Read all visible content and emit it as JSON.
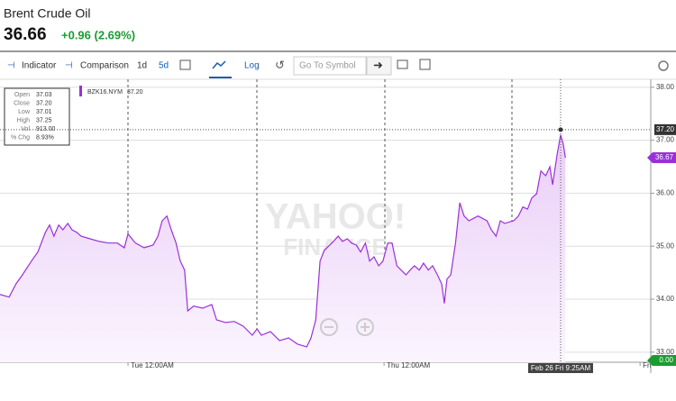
{
  "header": {
    "title": "Brent Crude Oil",
    "price": "36.66",
    "change": "+0.96 (2.69%)"
  },
  "toolbar": {
    "indicator": "Indicator",
    "comparison": "Comparison",
    "range_1d": "1d",
    "range_5d": "5d",
    "log": "Log",
    "search_placeholder": "Go To Symbol"
  },
  "chart_data": {
    "type": "line",
    "watermark": [
      "YAHOO!",
      "FINANCE"
    ],
    "series": [
      {
        "name": "BZK16.NYM",
        "legend_value": "37.20",
        "color": "#9b30d9",
        "x": [
          0,
          1.7,
          3.0,
          4.2,
          5.9,
          7.1,
          8.5,
          9.3,
          10.1,
          11.0,
          11.8,
          12.7,
          13.5,
          14.4,
          15.2,
          16.9,
          18.6,
          20.3,
          22.0,
          23.3,
          24.0,
          25.4,
          27.0,
          28.7,
          29.6,
          30.4,
          31.3,
          32.1,
          33.0,
          33.8,
          34.6,
          35.2,
          36.3,
          38.0,
          39.7,
          40.6,
          42.3,
          43.9,
          45.6,
          47.3,
          48.2,
          49.0,
          50.7,
          52.4,
          54.1,
          55.8,
          57.5,
          58.3,
          59.2,
          60.0,
          60.8,
          62.5,
          63.4,
          64.2,
          65.1,
          65.9,
          66.8,
          67.6,
          68.5,
          69.3,
          70.1,
          71.0,
          71.8,
          72.7,
          73.5,
          74.4,
          75.2,
          76.1,
          76.9,
          77.7,
          78.6,
          79.4,
          80.3,
          81.1,
          82.0,
          82.8,
          83.3,
          83.8,
          84.5,
          85.4,
          86.2,
          87.0,
          87.9,
          89.6,
          91.3,
          92.1,
          93.0,
          93.8,
          94.6,
          96.3,
          97.2,
          98.0,
          98.9,
          99.7,
          100.6,
          101.4,
          102.3,
          103.1,
          103.6,
          104.5,
          104.8,
          105.1,
          105.6,
          106.0
        ],
        "values": [
          34.09,
          34.04,
          34.29,
          34.46,
          34.72,
          34.89,
          35.26,
          35.4,
          35.19,
          35.4,
          35.31,
          35.43,
          35.31,
          35.26,
          35.19,
          35.14,
          35.09,
          35.06,
          35.06,
          34.97,
          35.23,
          35.06,
          34.97,
          35.02,
          35.19,
          35.48,
          35.57,
          35.31,
          35.06,
          34.72,
          34.55,
          33.78,
          33.87,
          33.83,
          33.9,
          33.61,
          33.56,
          33.58,
          33.49,
          33.32,
          33.44,
          33.32,
          33.39,
          33.22,
          33.27,
          33.15,
          33.1,
          33.27,
          33.61,
          34.72,
          34.92,
          35.09,
          35.19,
          35.09,
          35.14,
          35.06,
          35.02,
          34.89,
          35.06,
          34.72,
          34.8,
          34.63,
          34.72,
          35.06,
          35.06,
          34.63,
          34.55,
          34.46,
          34.55,
          34.63,
          34.55,
          34.68,
          34.55,
          34.63,
          34.46,
          34.29,
          33.92,
          34.38,
          34.46,
          35.06,
          35.82,
          35.57,
          35.48,
          35.57,
          35.48,
          35.31,
          35.19,
          35.48,
          35.43,
          35.48,
          35.57,
          35.74,
          35.7,
          35.91,
          35.99,
          36.42,
          36.33,
          36.5,
          36.16,
          36.76,
          36.93,
          37.1,
          36.93,
          36.67
        ]
      }
    ],
    "xlim": [
      0,
      122
    ],
    "xticks": [
      {
        "value": 24,
        "label": "Tue 12:00AM"
      },
      {
        "value": 72,
        "label": "Thu 12:00AM"
      },
      {
        "value": 120,
        "label": "Fri"
      }
    ],
    "ylim": [
      32.81,
      38.15
    ],
    "yticks": [
      {
        "value": 33,
        "label": "33.00"
      },
      {
        "value": 34,
        "label": "34.00"
      },
      {
        "value": 35,
        "label": "35.00"
      },
      {
        "value": 36,
        "label": "36.00"
      },
      {
        "value": 37,
        "label": "37.00"
      },
      {
        "value": 38,
        "label": "38.00"
      }
    ],
    "grid": true,
    "crosshair": {
      "x": 105.1,
      "x_label": "Feb 26 Fri 9:25AM",
      "y": 37.2,
      "y_label": "37.20"
    },
    "last_price": {
      "value": 36.67,
      "label": "36.67"
    },
    "volume_badge": {
      "value": 0,
      "label": "0.00"
    },
    "ohlc": [
      [
        "Open",
        "37.03"
      ],
      [
        "Close",
        "37.20"
      ],
      [
        "Low",
        "37.01"
      ],
      [
        "High",
        "37.25"
      ],
      [
        "Vol",
        "913.00"
      ],
      [
        "% Chg",
        "8.93%"
      ]
    ]
  }
}
